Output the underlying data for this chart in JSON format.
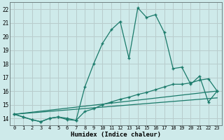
{
  "title": "",
  "xlabel": "Humidex (Indice chaleur)",
  "background_color": "#ceeaea",
  "grid_color": "#b8cccc",
  "line_color": "#1a7a6a",
  "xlim": [
    -0.5,
    23.5
  ],
  "ylim": [
    13.5,
    22.5
  ],
  "xtick_labels": [
    "0",
    "1",
    "2",
    "3",
    "4",
    "5",
    "6",
    "7",
    "8",
    "9",
    "10",
    "11",
    "12",
    "13",
    "14",
    "15",
    "16",
    "17",
    "18",
    "19",
    "20",
    "21",
    "22",
    "23"
  ],
  "ytick_labels": [
    "14",
    "15",
    "16",
    "17",
    "18",
    "19",
    "20",
    "21",
    "22"
  ],
  "series1_x": [
    0,
    1,
    2,
    3,
    4,
    5,
    6,
    7,
    8,
    9,
    10,
    11,
    12,
    13,
    14,
    15,
    16,
    17,
    18,
    19,
    20,
    21,
    22,
    23
  ],
  "series1_y": [
    14.3,
    14.1,
    13.9,
    13.75,
    14.0,
    14.1,
    13.9,
    13.85,
    16.3,
    18.0,
    19.5,
    20.5,
    21.1,
    18.4,
    22.1,
    21.4,
    21.6,
    20.3,
    17.65,
    17.75,
    16.5,
    17.1,
    15.2,
    16.0
  ],
  "series2_x": [
    0,
    1,
    2,
    3,
    4,
    5,
    6,
    7,
    8,
    9,
    10,
    11,
    12,
    13,
    14,
    15,
    16,
    17,
    18,
    19,
    20,
    21,
    22,
    23
  ],
  "series2_y": [
    14.3,
    14.1,
    13.9,
    13.75,
    14.0,
    14.1,
    14.0,
    13.85,
    14.5,
    14.7,
    15.0,
    15.2,
    15.4,
    15.55,
    15.75,
    15.9,
    16.1,
    16.3,
    16.5,
    16.5,
    16.6,
    16.8,
    16.9,
    16.0
  ],
  "series3_x": [
    0,
    23
  ],
  "series3_y": [
    14.3,
    16.0
  ],
  "series4_x": [
    0,
    23
  ],
  "series4_y": [
    14.3,
    15.5
  ]
}
